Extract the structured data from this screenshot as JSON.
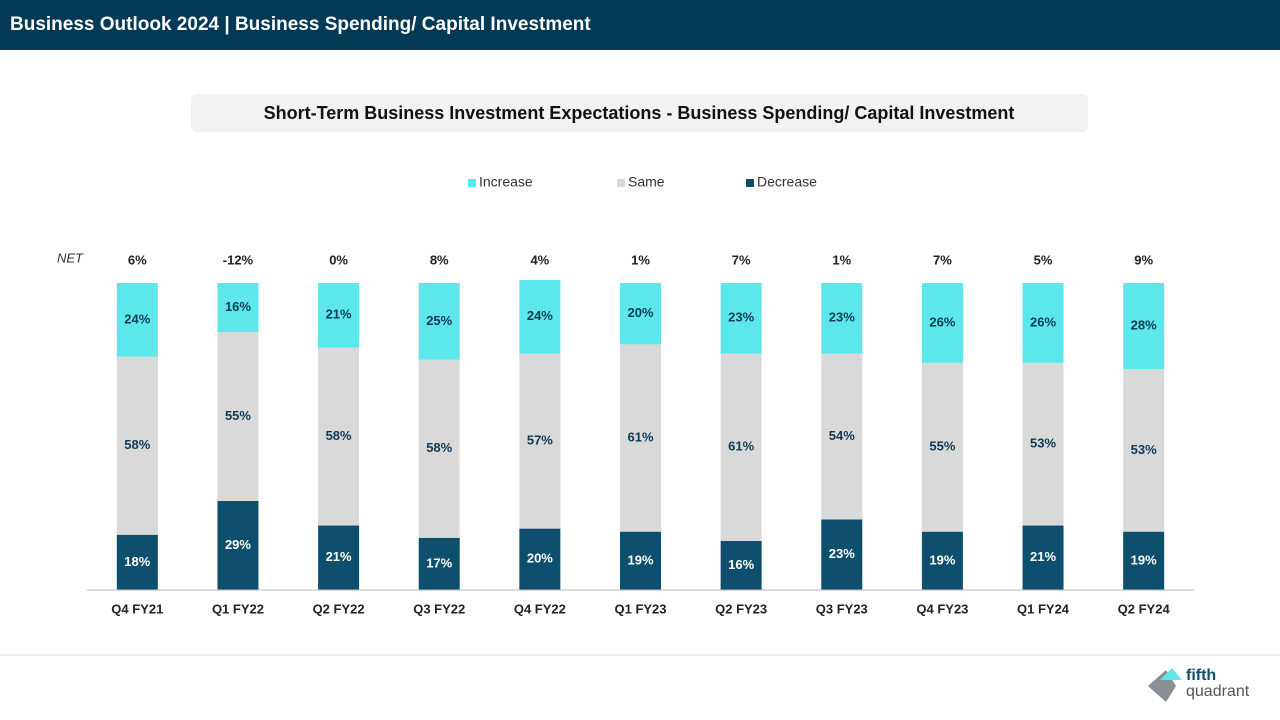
{
  "header": {
    "title": "Business Outlook 2024 | Business Spending/ Capital Investment"
  },
  "chart_data": {
    "type": "stacked-bar",
    "title": "Short-Term Business Investment Expectations - Business Spending/ Capital Investment",
    "categories": [
      "Q4 FY21",
      "Q1 FY22",
      "Q2 FY22",
      "Q3 FY22",
      "Q4 FY22",
      "Q1 FY23",
      "Q2 FY23",
      "Q3 FY23",
      "Q4 FY23",
      "Q1 FY24",
      "Q2 FY24"
    ],
    "ylim": [
      0,
      100
    ],
    "series": [
      {
        "name": "Increase",
        "color": "#5ce8ea",
        "label_color": "#0e3a55",
        "values": [
          24,
          16,
          21,
          25,
          24,
          20,
          23,
          23,
          26,
          26,
          28
        ],
        "value_labels": [
          "24%",
          "16%",
          "21%",
          "25%",
          "24%",
          "20%",
          "23%",
          "23%",
          "26%",
          "26%",
          "28%"
        ]
      },
      {
        "name": "Same",
        "color": "#d9d9d9",
        "label_color": "#0e3a55",
        "values": [
          58,
          55,
          58,
          58,
          57,
          61,
          61,
          54,
          55,
          53,
          53
        ],
        "value_labels": [
          "58%",
          "55%",
          "58%",
          "58%",
          "57%",
          "61%",
          "61%",
          "54%",
          "55%",
          "53%",
          "53%"
        ]
      },
      {
        "name": "Decrease",
        "color": "#0e4f6e",
        "label_color": "#ffffff",
        "values": [
          18,
          29,
          21,
          17,
          20,
          19,
          16,
          23,
          19,
          21,
          19
        ],
        "value_labels": [
          "18%",
          "29%",
          "21%",
          "17%",
          "20%",
          "19%",
          "16%",
          "23%",
          "19%",
          "21%",
          "19%"
        ]
      }
    ],
    "net": {
      "label": "NET",
      "values": [
        6,
        -12,
        0,
        8,
        4,
        1,
        7,
        1,
        7,
        5,
        9
      ],
      "value_labels": [
        "6%",
        "-12%",
        "0%",
        "8%",
        "4%",
        "1%",
        "7%",
        "1%",
        "7%",
        "5%",
        "9%"
      ]
    }
  },
  "footer": {
    "logo_top": "fifth",
    "logo_bottom": "quadrant"
  }
}
